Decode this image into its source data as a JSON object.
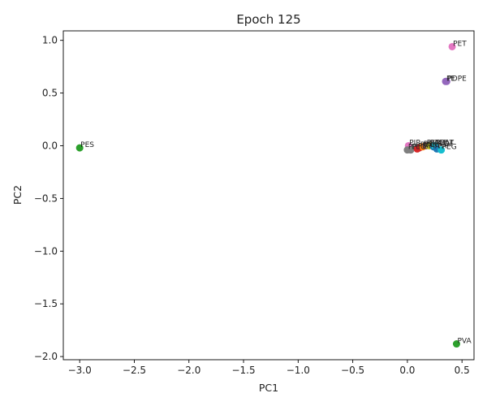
{
  "chart_data": {
    "type": "scatter",
    "title": "Epoch 125",
    "xlabel": "PC1",
    "ylabel": "PC2",
    "xlim": [
      -3.15,
      0.61
    ],
    "ylim": [
      -2.03,
      1.09
    ],
    "xticks": [
      -3.0,
      -2.5,
      -2.0,
      -1.5,
      -1.0,
      -0.5,
      0.0,
      0.5
    ],
    "xtick_labels": [
      "−3.0",
      "−2.5",
      "−2.0",
      "−1.5",
      "−1.0",
      "−0.5",
      "0.0",
      "0.5"
    ],
    "yticks": [
      1.0,
      0.5,
      0.0,
      -0.5,
      -1.0,
      -1.5,
      -2.0
    ],
    "ytick_labels": [
      "1.0",
      "0.5",
      "0.0",
      "−0.5",
      "−1.0",
      "−1.5",
      "−2.0"
    ],
    "grid": false,
    "points": [
      {
        "label": "PES",
        "x": -3.0,
        "y": -0.02,
        "color": "#2ca02c"
      },
      {
        "label": "PET",
        "x": 0.41,
        "y": 0.94,
        "color": "#e377c2"
      },
      {
        "label": "PE",
        "x": 0.35,
        "y": 0.61,
        "color": "#9467bd"
      },
      {
        "label": "PDPE",
        "x": 0.36,
        "y": 0.61,
        "color": "#9467bd"
      },
      {
        "label": "PVA",
        "x": 0.45,
        "y": -1.88,
        "color": "#2ca02c"
      },
      {
        "label": "PIP",
        "x": 0.01,
        "y": 0.0,
        "color": "#e377c2"
      },
      {
        "label": "PP",
        "x": 0.0,
        "y": -0.04,
        "color": "#7f7f7f"
      },
      {
        "label": "PEO",
        "x": 0.03,
        "y": -0.04,
        "color": "#7f7f7f"
      },
      {
        "label": "PMMA",
        "x": 0.09,
        "y": -0.03,
        "color": "#d62728"
      },
      {
        "label": "PVC",
        "x": 0.11,
        "y": -0.02,
        "color": "#d62728"
      },
      {
        "label": "PS",
        "x": 0.14,
        "y": -0.01,
        "color": "#ff7f0e"
      },
      {
        "label": "PAN",
        "x": 0.17,
        "y": 0.0,
        "color": "#8c564b"
      },
      {
        "label": "PTFE",
        "x": 0.2,
        "y": 0.0,
        "color": "#bcbd22"
      },
      {
        "label": "PVDF",
        "x": 0.24,
        "y": -0.01,
        "color": "#1f77b4"
      },
      {
        "label": "PBAT",
        "x": 0.25,
        "y": 0.0,
        "color": "#17becf"
      },
      {
        "label": "PA",
        "x": 0.27,
        "y": -0.03,
        "color": "#1f77b4"
      },
      {
        "label": "PEG",
        "x": 0.31,
        "y": -0.04,
        "color": "#17becf"
      }
    ]
  }
}
